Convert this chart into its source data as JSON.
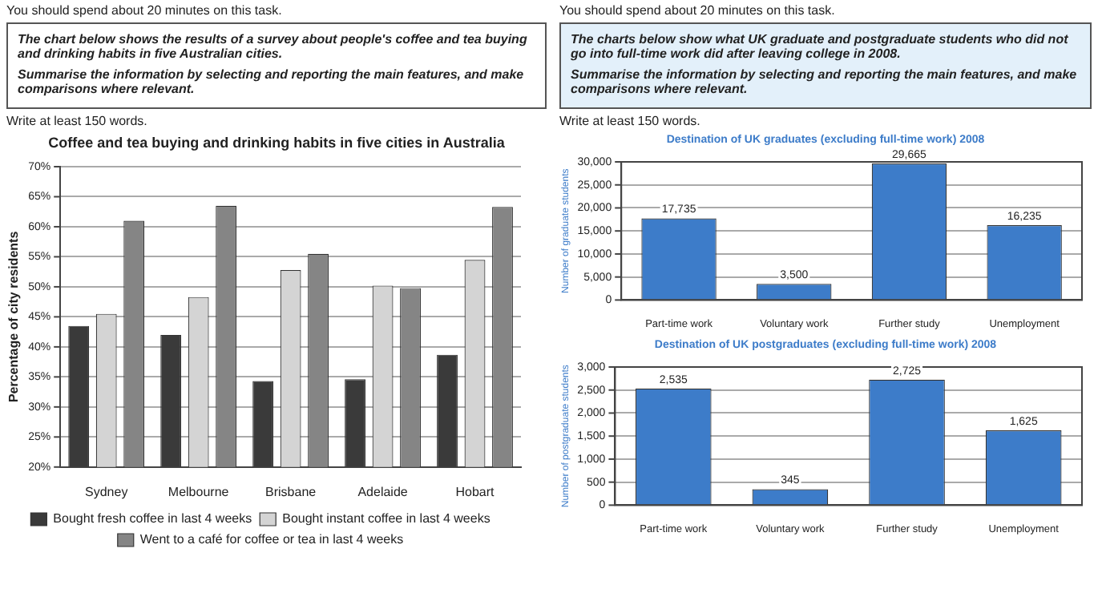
{
  "chart_data": [
    {
      "type": "bar",
      "title": "Coffee and tea buying and drinking habits in five cities in Australia",
      "ylabel": "Percentage of city residents",
      "annotations": [
        "You should spend about 20 minutes on this task.",
        "The chart below shows the results of a survey about people's coffee and tea buying and drinking habits in five Australian cities.",
        "Summarise the information by selecting and reporting the main features, and make comparisons where relevant.",
        "Write at least 150 words."
      ],
      "categories": [
        "Sydney",
        "Melbourne",
        "Brisbane",
        "Adelaide",
        "Hobart"
      ],
      "series": [
        {
          "name": "Bought fresh coffee in last 4 weeks",
          "color": "#3a3a3a",
          "values": [
            43.5,
            42,
            34.3,
            34.6,
            38.7
          ]
        },
        {
          "name": "Bought instant coffee in last 4 weeks",
          "color": "#d4d4d4",
          "values": [
            45.5,
            48.3,
            52.8,
            50.2,
            54.5
          ]
        },
        {
          "name": "Went to a café for coffee or tea in last 4 weeks",
          "color": "#858585",
          "values": [
            61,
            63.5,
            55.5,
            49.8,
            63.3
          ]
        }
      ],
      "ylim": [
        20,
        70
      ],
      "yticks": [
        {
          "value": 20,
          "label": "20%"
        },
        {
          "value": 25,
          "label": "25%"
        },
        {
          "value": 30,
          "label": "30%"
        },
        {
          "value": 35,
          "label": "35%"
        },
        {
          "value": 40,
          "label": "40%"
        },
        {
          "value": 45,
          "label": "45%"
        },
        {
          "value": 50,
          "label": "50%"
        },
        {
          "value": 55,
          "label": "55%"
        },
        {
          "value": 60,
          "label": "60%"
        },
        {
          "value": 65,
          "label": "65%"
        },
        {
          "value": 70,
          "label": "70%"
        }
      ],
      "grid": "y",
      "legend": "bottom"
    },
    {
      "type": "bar",
      "title": "Destination of UK graduates (excluding full-time work) 2008",
      "ylabel": "Number of graduate students",
      "annotations": [
        "You should spend about 20 minutes on this task.",
        "The charts below show what UK graduate and postgraduate students who did not go into full-time work did after leaving college in 2008.",
        "Summarise the information by selecting and reporting the main features, and make comparisons where relevant.",
        "Write at least 150 words."
      ],
      "categories": [
        "Part-time work",
        "Voluntary work",
        "Further study",
        "Unemployment"
      ],
      "values": [
        17735,
        3500,
        29665,
        16235
      ],
      "value_labels": [
        "17,735",
        "3,500",
        "29,665",
        "16,235"
      ],
      "color": "#3d7cc9",
      "ylim": [
        0,
        30000
      ],
      "yticks": [
        {
          "value": 0,
          "label": "0"
        },
        {
          "value": 5000,
          "label": "5,000"
        },
        {
          "value": 10000,
          "label": "10,000"
        },
        {
          "value": 15000,
          "label": "15,000"
        },
        {
          "value": 20000,
          "label": "20,000"
        },
        {
          "value": 25000,
          "label": "25,000"
        },
        {
          "value": 30000,
          "label": "30,000"
        }
      ],
      "grid": "y"
    },
    {
      "type": "bar",
      "title": "Destination of UK postgraduates (excluding full-time work) 2008",
      "ylabel": "Number of postgraduate students",
      "categories": [
        "Part-time work",
        "Voluntary work",
        "Further study",
        "Unemployment"
      ],
      "values": [
        2535,
        345,
        2725,
        1625
      ],
      "value_labels": [
        "2,535",
        "345",
        "2,725",
        "1,625"
      ],
      "color": "#3d7cc9",
      "ylim": [
        0,
        3000
      ],
      "yticks": [
        {
          "value": 0,
          "label": "0"
        },
        500,
        {
          "value": 1000,
          "label": "1,000"
        },
        {
          "value": 1500,
          "label": "1,500"
        },
        {
          "value": 2000,
          "label": "2,000"
        },
        {
          "value": 2500,
          "label": "2,500"
        },
        {
          "value": 3000,
          "label": "3,000"
        }
      ],
      "grid": "y"
    }
  ]
}
